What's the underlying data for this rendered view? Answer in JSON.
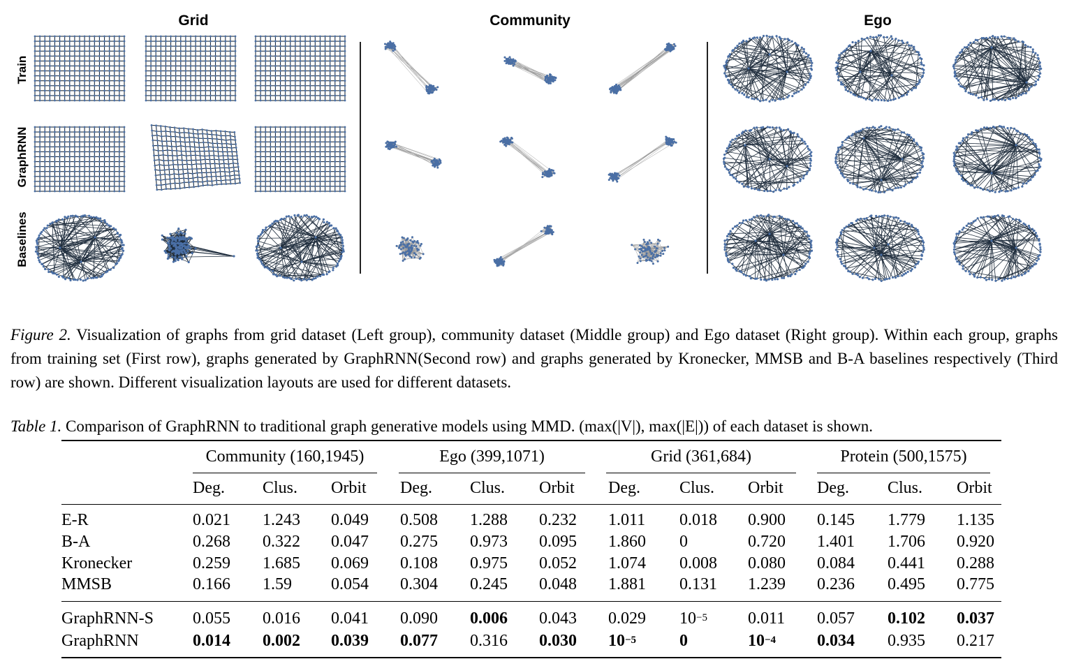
{
  "figure": {
    "group_titles": [
      "Grid",
      "Community",
      "Ego"
    ],
    "row_labels": [
      "Train",
      "GraphRNN",
      "Baselines"
    ],
    "node_color": "#4a6fa5",
    "edge_color_dark": "#1f2d3d",
    "edge_color_light": "#9a9a9a"
  },
  "figure_caption": {
    "label": "Figure 2.",
    "text": " Visualization of graphs from grid dataset (Left group), community dataset (Middle group) and Ego dataset (Right group). Within each group, graphs from training set (First row), graphs generated by GraphRNN(Second row) and graphs generated by Kronecker, MMSB and B-A baselines respectively (Third row) are shown. Different visualization layouts are used for different datasets."
  },
  "table_caption": {
    "label": "Table 1.",
    "text_before": " Comparison of GraphRNN to traditional graph generative models using MMD. ",
    "math": "(max(|V|), max(|E|))",
    "text_after": " of each dataset is shown."
  },
  "table": {
    "groups": [
      "Community (160,1945)",
      "Ego (399,1071)",
      "Grid (361,684)",
      "Protein (500,1575)"
    ],
    "metrics": [
      "Deg.",
      "Clus.",
      "Orbit"
    ],
    "rows": [
      {
        "name": "E-R",
        "values": [
          "0.021",
          "1.243",
          "0.049",
          "0.508",
          "1.288",
          "0.232",
          "1.011",
          "0.018",
          "0.900",
          "0.145",
          "1.779",
          "1.135"
        ]
      },
      {
        "name": "B-A",
        "values": [
          "0.268",
          "0.322",
          "0.047",
          "0.275",
          "0.973",
          "0.095",
          "1.860",
          "0",
          "0.720",
          "1.401",
          "1.706",
          "0.920"
        ]
      },
      {
        "name": "Kronecker",
        "values": [
          "0.259",
          "1.685",
          "0.069",
          "0.108",
          "0.975",
          "0.052",
          "1.074",
          "0.008",
          "0.080",
          "0.084",
          "0.441",
          "0.288"
        ]
      },
      {
        "name": "MMSB",
        "values": [
          "0.166",
          "1.59",
          "0.054",
          "0.304",
          "0.245",
          "0.048",
          "1.881",
          "0.131",
          "1.239",
          "0.236",
          "0.495",
          "0.775"
        ]
      },
      {
        "name": "GraphRNN-S",
        "values": [
          "0.055",
          "0.016",
          "0.041",
          "0.090",
          "0.006",
          "0.043",
          "0.029",
          "10^-5",
          "0.011",
          "0.057",
          "0.102",
          "0.037"
        ],
        "bold": [
          false,
          false,
          false,
          false,
          true,
          false,
          false,
          false,
          false,
          false,
          true,
          true
        ]
      },
      {
        "name": "GraphRNN",
        "values": [
          "0.014",
          "0.002",
          "0.039",
          "0.077",
          "0.316",
          "0.030",
          "10^-5",
          "0",
          "10^-4",
          "0.034",
          "0.935",
          "0.217"
        ],
        "bold": [
          true,
          true,
          true,
          true,
          false,
          true,
          true,
          true,
          true,
          true,
          false,
          false
        ]
      }
    ]
  }
}
